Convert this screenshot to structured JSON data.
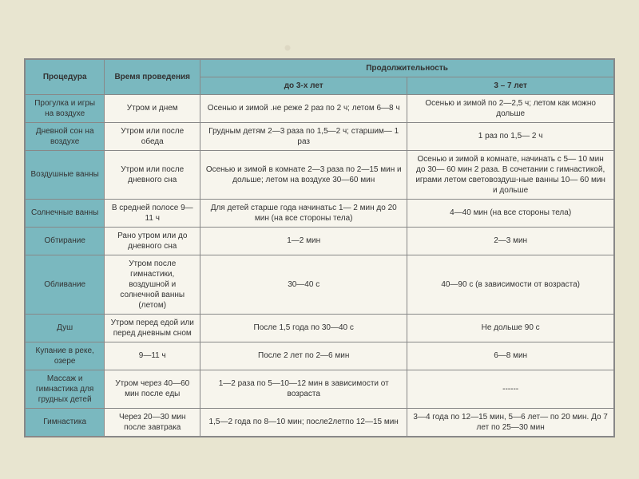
{
  "table": {
    "header_cells": {
      "procedure": "Процедура",
      "time": "Время проведения",
      "duration": "Продолжительность",
      "under3": "до 3-х лет",
      "from3to7": "3 – 7 лет"
    },
    "rows": [
      {
        "procedure": "Прогулка и игры на воздухе",
        "time": "Утром и днем",
        "under3": "Осенью и зимой .не реже 2 раз по 2 ч; летом 6—8 ч",
        "from3to7": "Осенью и зимой по 2—2,5 ч; летом как можно дольше"
      },
      {
        "procedure": "Дневной сон на воздухе",
        "time": "Утром или после обеда",
        "under3": "Грудным детям 2—3 раза по 1,5—2 ч; старшим— 1 раз",
        "from3to7": "1 раз по 1,5— 2 ч"
      },
      {
        "procedure": "Воздушные ванны",
        "time": "Утром или после дневного сна",
        "under3": "Осенью и зимой в комнате 2—3 раза по 2—15 мин и дольше; летом на воздухе 30—60 мин",
        "from3to7": "Осенью и зимой в комнате, начинать с 5— 10 мин до 30— 60 мин 2 раза. В сочетании с гимнастикой, играми летом световоздуш-ные ванны 10— 60 мин и дольше"
      },
      {
        "procedure": "Солнечные ванны",
        "time": "В средней полосе 9— 11 ч",
        "under3": "Для детей старше года начинатьс 1— 2 мин до 20 мин (на все стороны тела)",
        "from3to7": "4—40 мин (на все стороны тела)"
      },
      {
        "procedure": "Обтирание",
        "time": "Рано утром или до дневного сна",
        "under3": "1—2 мин",
        "from3to7": "2—3 мин"
      },
      {
        "procedure": "Обливание",
        "time": "Утром после гимнастики, воздушной и солнечной ванны (летом)",
        "under3": "30—40 с",
        "from3to7": "40—90 с (в зависимости от возраста)"
      },
      {
        "procedure": "Душ",
        "time": "Утром перед едой или перед дневным сном",
        "under3": "После 1,5 года по 30—40 с",
        "from3to7": "Не дольше 90 с"
      },
      {
        "procedure": "Купание в реке, озере",
        "time": "9—11 ч",
        "under3": "После 2 лет по 2—6 мин",
        "from3to7": "6—8 мин"
      },
      {
        "procedure": "Массаж и гимнастика для грудных детей",
        "time": "Утром через 40—60 мин после еды",
        "under3": "1—2 раза по 5—10—12 мин в зависимости от возраста",
        "from3to7": "------"
      },
      {
        "procedure": "Гимнастика",
        "time": "Через 20—30 мин после завтрака",
        "under3": "1,5—2 года по 8—10 мин; после2летпо 12—15 мин",
        "from3to7": "3—4 года по 12—15 мин, 5—6 лет— по 20 мин. До 7 лет по 25—30 мин"
      }
    ],
    "colors": {
      "header_bg": "#7ab8bf",
      "cell_bg": "#f7f5ed",
      "border": "#888888",
      "page_bg": "#e8e5d0",
      "text": "#333333"
    },
    "font_size_pt": 8
  }
}
